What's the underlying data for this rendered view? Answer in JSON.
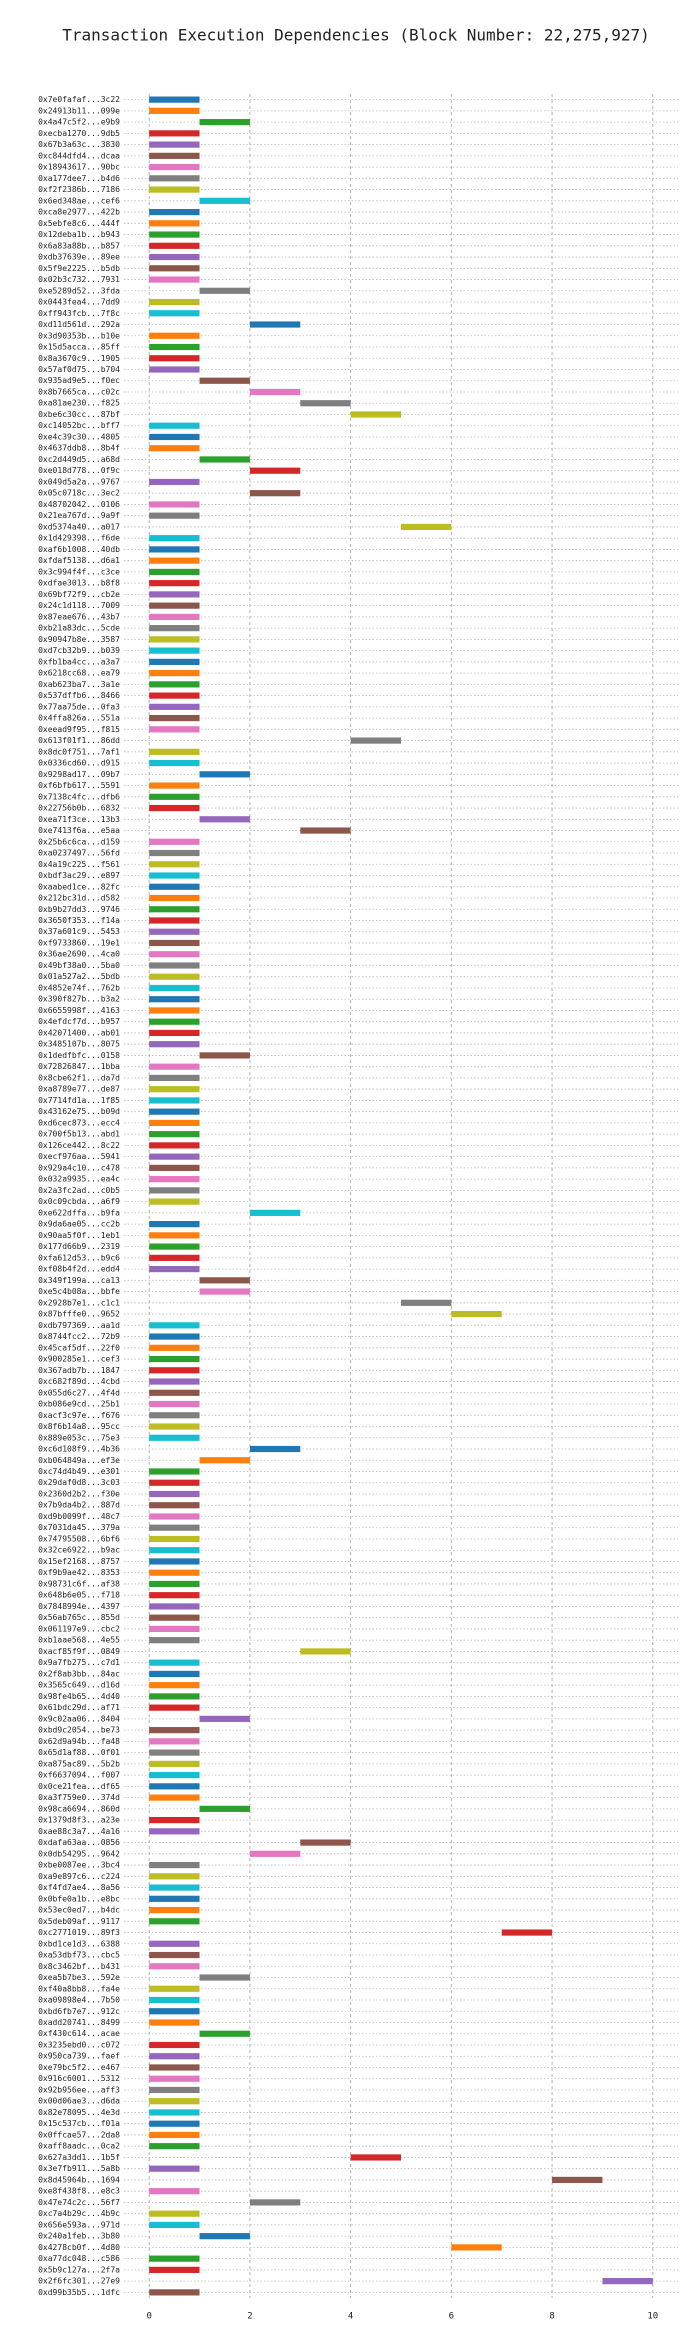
{
  "chart_data": {
    "type": "gantt",
    "title": "Transaction Execution Dependencies (Block Number: 22,275,927)",
    "categories": [
      "0x7e0fafaf...3c22",
      "0x24913b11...099e",
      "0x4a47c5f2...e9b9",
      "0xecba1270...9db5",
      "0x67b3a63c...3830",
      "0xc844dfd4...dcaa",
      "0x18943617...90bc",
      "0xa177dee7...b4d6",
      "0xf2f2386b...7186",
      "0x6ed348ae...cef6",
      "0xca8e2977...422b",
      "0x5ebfe8c6...444f",
      "0x12deba1b...b943",
      "0x6a83a88b...b857",
      "0xdb37639e...89ee",
      "0x5f9e2225...b5db",
      "0x02b3c732...7931",
      "0xe5289d52...3fda",
      "0x0443fea4...7dd9",
      "0xff943fcb...7f8c",
      "0xd11d561d...292a",
      "0x3d90353b...b10e",
      "0x15d5acca...85ff",
      "0x8a3670c9...1905",
      "0x57af0d75...b704",
      "0x935ad9e5...f0ec",
      "0x8b7665ca...c02c",
      "0xa81ae230...f825",
      "0xbe6c30cc...87bf",
      "0xc14052bc...bff7",
      "0xe4c39c30...4805",
      "0x4637ddb8...8b4f",
      "0xc2d449d5...a68d",
      "0xe018d778...0f9c",
      "0x049d5a2a...9767",
      "0x05c0718c...3ec2",
      "0x48702042...0106",
      "0x21ea767d...9a9f",
      "0xd5374a40...a017",
      "0x1d429398...f6de",
      "0xaf6b1008...40db",
      "0xfdaf5138...d6a1",
      "0x3c994f4f...c3ce",
      "0xdfae3013...b8f8",
      "0x69bf72f9...cb2e",
      "0x24c1d118...7009",
      "0x87eae676...43b7",
      "0xb21a83dc...5cde",
      "0x90947b8e...3587",
      "0xd7cb32b9...b039",
      "0xfb1ba4cc...a3a7",
      "0x6218cc68...ea79",
      "0xab623ba7...3a1e",
      "0x537dffb6...8466",
      "0x77aa75de...0fa3",
      "0x4ffa826a...551a",
      "0xeead9f95...f815",
      "0x613f01f1...86dd",
      "0x8dc0f751...7af1",
      "0x0336cd60...d915",
      "0x9298ad17...09b7",
      "0xf6bfb617...5591",
      "0x7138c4fc...dfb6",
      "0x22756b0b...6832",
      "0xea71f3ce...13b3",
      "0xe7413f6a...e5aa",
      "0x25b6c6ca...d159",
      "0xa0237497...56fd",
      "0x4a19c225...f561",
      "0xbdf3ac29...e897",
      "0xaabed1ce...82fc",
      "0x212bc31d...d582",
      "0xb9b27dd3...9746",
      "0x3650f353...f14a",
      "0x37a601c9...5453",
      "0xf9733860...19e1",
      "0x36ae2690...4ca0",
      "0x49bf38a0...5ba0",
      "0x01a527a2...5bdb",
      "0x4852e74f...762b",
      "0x390f827b...b3a2",
      "0x6655998f...4163",
      "0x4efdcf7d...b957",
      "0x42071400...ab01",
      "0x3485107b...8075",
      "0x1dedfbfc...0158",
      "0x72826847...1bba",
      "0x8cbe62f1...da7d",
      "0xa8789e77...de87",
      "0x7714fd1a...1f85",
      "0x43162e75...b09d",
      "0xd6cec873...ecc4",
      "0x700f5b13...abd1",
      "0x126ce442...8c22",
      "0xecf976aa...5941",
      "0x929a4c10...c478",
      "0x032a9935...ea4c",
      "0x2a3fc2ad...c0b5",
      "0x0c09cbda...a6f9",
      "0xe622dffa...b9fa",
      "0x9da6ae05...cc2b",
      "0x90aa5f0f...1eb1",
      "0x177d66b9...2319",
      "0xfa612d53...b9c6",
      "0xf08b4f2d...edd4",
      "0x349f199a...ca13",
      "0xe5c4b08a...bbfe",
      "0x2928b7e1...c1c1",
      "0x87bfffe0...9652",
      "0xdb797369...aa1d",
      "0x8744fcc2...72b9",
      "0x45caf5df...22f0",
      "0x900285e1...cef3",
      "0x367adb7b...1847",
      "0xc682f89d...4cbd",
      "0x055d6c27...4f4d",
      "0xb086e9cd...25b1",
      "0xacf3c97e...f676",
      "0x8f6b14a8...95cc",
      "0x889e053c...75e3",
      "0xc6d108f9...4b36",
      "0xb064849a...ef3e",
      "0xc74d4b49...e301",
      "0x29daf0d8...3c03",
      "0x2360d2b2...f30e",
      "0x7b9da4b2...887d",
      "0xd9b0099f...48c7",
      "0x7031da45...379a",
      "0x74795508...6bf6",
      "0x32ce6922...b9ac",
      "0x15ef2168...8757",
      "0xf9b9ae42...8353",
      "0x98731c6f...af38",
      "0x648b6e05...f718",
      "0x7848994e...4397",
      "0x56ab765c...855d",
      "0x061197e9...cbc2",
      "0xb1aae568...4e55",
      "0xacf85f9f...0849",
      "0x9a7fb275...c7d1",
      "0x2f8ab3bb...84ac",
      "0x3565c649...d16d",
      "0x98fe4b65...4d40",
      "0x61bdc29d...af71",
      "0x9c02aa06...8404",
      "0xbd9c2054...be73",
      "0x62d9a94b...fa48",
      "0x65d1af88...0f01",
      "0xa875ac89...5b2b",
      "0xf6637094...f007",
      "0x0ce21fea...df65",
      "0xa3f759e0...374d",
      "0x98ca6694...860d",
      "0x1379d8f3...a23e",
      "0xae88c3a7...4a16",
      "0xdafa63aa...0856",
      "0x0db54295...9642",
      "0xbe0087ee...3bc4",
      "0xa9e897c6...c224",
      "0xf4fd7ae4...8a56",
      "0x0bfe0a1b...e8bc",
      "0x53ec0ed7...b4dc",
      "0x5deb09af...9117",
      "0xc2771019...89f3",
      "0xbd1ce1d3...6388",
      "0xa53dbf73...cbc5",
      "0x8c3462bf...b431",
      "0xea5b7be3...592e",
      "0xf40a8bb8...fa4e",
      "0xa09898e4...7b50",
      "0xbd6fb7e7...912c",
      "0xadd20741...8499",
      "0xf430c614...acae",
      "0x3235ebd0...c072",
      "0x950ca739...faef",
      "0xe79bc5f2...e467",
      "0x916c6001...5312",
      "0x92b956ee...aff3",
      "0x00d06ae3...d6da",
      "0x82e78095...4e3d",
      "0x15c537cb...f01a",
      "0x0ffcae57...2da8",
      "0xaff8aadc...0ca2",
      "0x627a3dd1...1b5f",
      "0x3e7fb911...5a8b",
      "0x8d45964b...1694",
      "0xe8f438f8...e8c3",
      "0x47e74c2c...56f7",
      "0xc7a4b29c...4b9c",
      "0x656e593a...971d",
      "0x240a1feb...3b80",
      "0x4278cb0f...4d80",
      "0xa77dc048...c586",
      "0x5b9c127a...2f7a",
      "0x2f6fc301...27e9",
      "0xd99b35b5...1dfc"
    ],
    "starts": [
      0,
      0,
      1,
      0,
      0,
      0,
      0,
      0,
      0,
      1,
      0,
      0,
      0,
      0,
      0,
      0,
      0,
      1,
      0,
      0,
      2,
      0,
      0,
      0,
      0,
      1,
      2,
      3,
      4,
      0,
      0,
      0,
      1,
      2,
      0,
      2,
      0,
      0,
      5,
      0,
      0,
      0,
      0,
      0,
      0,
      0,
      0,
      0,
      0,
      0,
      0,
      0,
      0,
      0,
      0,
      0,
      0,
      4,
      0,
      0,
      1,
      0,
      0,
      0,
      1,
      3,
      0,
      0,
      0,
      0,
      0,
      0,
      0,
      0,
      0,
      0,
      0,
      0,
      0,
      0,
      0,
      0,
      0,
      0,
      0,
      1,
      0,
      0,
      0,
      0,
      0,
      0,
      0,
      0,
      0,
      0,
      0,
      0,
      0,
      2,
      0,
      0,
      0,
      0,
      0,
      1,
      1,
      5,
      6,
      0,
      0,
      0,
      0,
      0,
      0,
      0,
      0,
      0,
      0,
      0,
      2,
      1,
      0,
      0,
      0,
      0,
      0,
      0,
      0,
      0,
      0,
      0,
      0,
      0,
      0,
      0,
      0,
      0,
      3,
      0,
      0,
      0,
      0,
      0,
      1,
      0,
      0,
      0,
      0,
      0,
      0,
      0,
      1,
      0,
      0,
      3,
      2,
      0,
      0,
      0,
      0,
      0,
      0,
      7,
      0,
      0,
      0,
      1,
      0,
      0,
      0,
      0,
      1,
      0,
      0,
      0,
      0,
      0,
      0,
      0,
      0,
      0,
      0,
      4,
      0,
      8,
      0,
      2,
      0,
      0,
      1,
      6,
      0,
      0,
      9,
      0
    ],
    "ends": [
      1,
      1,
      2,
      1,
      1,
      1,
      1,
      1,
      1,
      2,
      1,
      1,
      1,
      1,
      1,
      1,
      1,
      2,
      1,
      1,
      3,
      1,
      1,
      1,
      1,
      2,
      3,
      4,
      5,
      1,
      1,
      1,
      2,
      3,
      1,
      3,
      1,
      1,
      6,
      1,
      1,
      1,
      1,
      1,
      1,
      1,
      1,
      1,
      1,
      1,
      1,
      1,
      1,
      1,
      1,
      1,
      1,
      5,
      1,
      1,
      2,
      1,
      1,
      1,
      2,
      4,
      1,
      1,
      1,
      1,
      1,
      1,
      1,
      1,
      1,
      1,
      1,
      1,
      1,
      1,
      1,
      1,
      1,
      1,
      1,
      2,
      1,
      1,
      1,
      1,
      1,
      1,
      1,
      1,
      1,
      1,
      1,
      1,
      1,
      3,
      1,
      1,
      1,
      1,
      1,
      2,
      2,
      6,
      7,
      1,
      1,
      1,
      1,
      1,
      1,
      1,
      1,
      1,
      1,
      1,
      3,
      2,
      1,
      1,
      1,
      1,
      1,
      1,
      1,
      1,
      1,
      1,
      1,
      1,
      1,
      1,
      1,
      1,
      4,
      1,
      1,
      1,
      1,
      1,
      2,
      1,
      1,
      1,
      1,
      1,
      1,
      1,
      2,
      1,
      1,
      4,
      3,
      1,
      1,
      1,
      1,
      1,
      1,
      8,
      1,
      1,
      1,
      2,
      1,
      1,
      1,
      1,
      2,
      1,
      1,
      1,
      1,
      1,
      1,
      1,
      1,
      1,
      1,
      5,
      1,
      9,
      1,
      3,
      1,
      1,
      2,
      7,
      1,
      1,
      10,
      1
    ],
    "palette": [
      "#1f77b4",
      "#ff7f0e",
      "#2ca02c",
      "#d62728",
      "#9467bd",
      "#8c564b",
      "#e377c2",
      "#7f7f7f",
      "#bcbd22",
      "#17becf"
    ],
    "xlim": [
      -0.5,
      10.5
    ],
    "xticks": [
      0,
      2,
      4,
      6,
      8,
      10
    ],
    "grid": true
  }
}
